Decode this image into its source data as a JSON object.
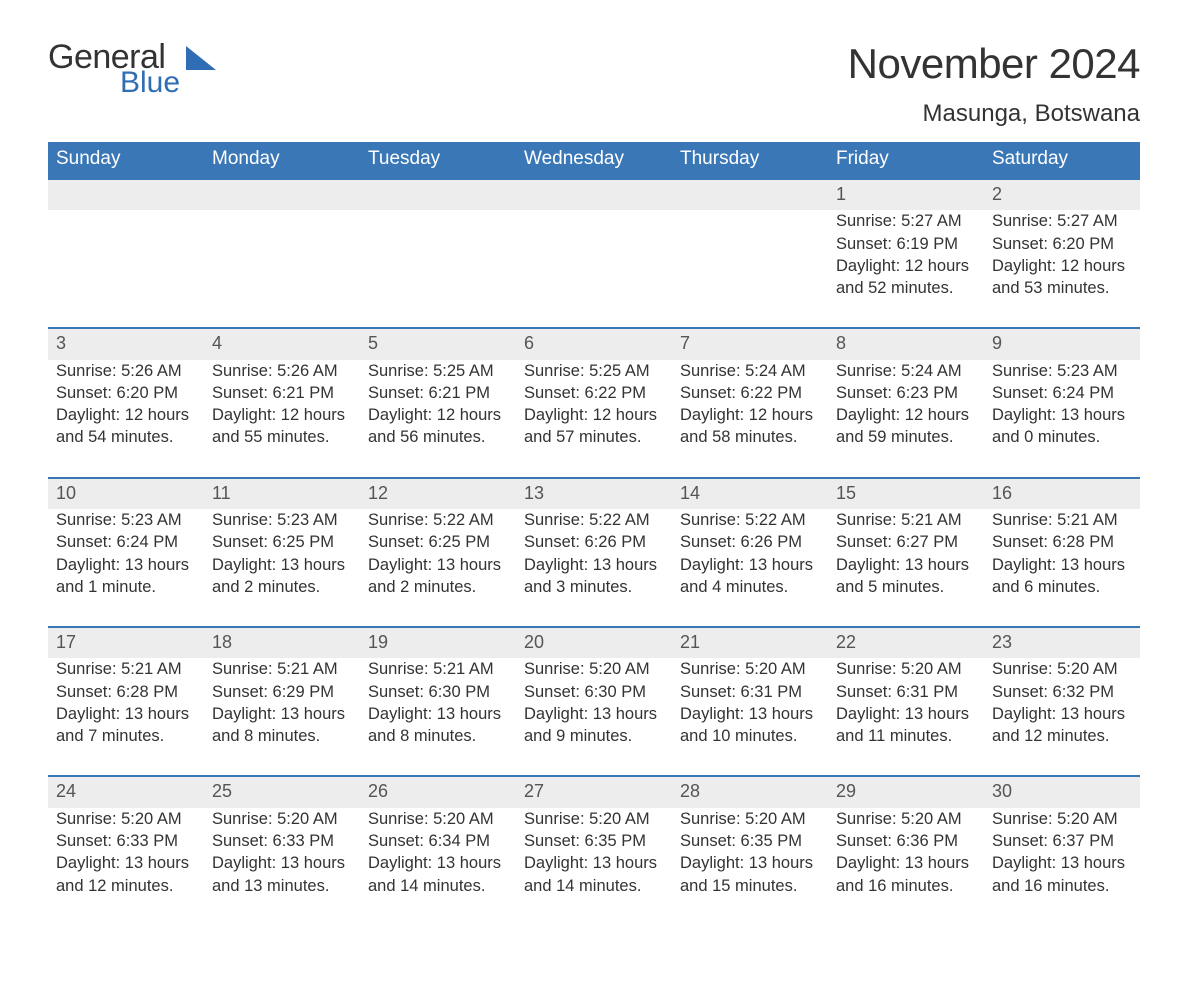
{
  "brand": {
    "part1": "General",
    "part2": "Blue",
    "text_color": "#333333",
    "accent_color": "#2f6eb5"
  },
  "title": {
    "month": "November 2024",
    "location": "Masunga, Botswana"
  },
  "colors": {
    "header_bg": "#3a77b7",
    "header_text": "#ffffff",
    "row_divider": "#3a77b7",
    "daynum_bg": "#ededed",
    "body_text": "#333333",
    "page_bg": "#ffffff"
  },
  "typography": {
    "month_title_fontsize": 42,
    "location_fontsize": 24,
    "dayheader_fontsize": 19,
    "daynum_fontsize": 18,
    "cell_fontsize": 16.5,
    "font_family": "Arial"
  },
  "layout": {
    "columns": 7,
    "weeks": 5,
    "first_day_column_index": 5
  },
  "day_headers": [
    "Sunday",
    "Monday",
    "Tuesday",
    "Wednesday",
    "Thursday",
    "Friday",
    "Saturday"
  ],
  "labels": {
    "sunrise_prefix": "Sunrise: ",
    "sunset_prefix": "Sunset: ",
    "daylight_prefix": "Daylight: "
  },
  "weeks": [
    [
      null,
      null,
      null,
      null,
      null,
      {
        "day": "1",
        "sunrise": "5:27 AM",
        "sunset": "6:19 PM",
        "daylight": "12 hours and 52 minutes."
      },
      {
        "day": "2",
        "sunrise": "5:27 AM",
        "sunset": "6:20 PM",
        "daylight": "12 hours and 53 minutes."
      }
    ],
    [
      {
        "day": "3",
        "sunrise": "5:26 AM",
        "sunset": "6:20 PM",
        "daylight": "12 hours and 54 minutes."
      },
      {
        "day": "4",
        "sunrise": "5:26 AM",
        "sunset": "6:21 PM",
        "daylight": "12 hours and 55 minutes."
      },
      {
        "day": "5",
        "sunrise": "5:25 AM",
        "sunset": "6:21 PM",
        "daylight": "12 hours and 56 minutes."
      },
      {
        "day": "6",
        "sunrise": "5:25 AM",
        "sunset": "6:22 PM",
        "daylight": "12 hours and 57 minutes."
      },
      {
        "day": "7",
        "sunrise": "5:24 AM",
        "sunset": "6:22 PM",
        "daylight": "12 hours and 58 minutes."
      },
      {
        "day": "8",
        "sunrise": "5:24 AM",
        "sunset": "6:23 PM",
        "daylight": "12 hours and 59 minutes."
      },
      {
        "day": "9",
        "sunrise": "5:23 AM",
        "sunset": "6:24 PM",
        "daylight": "13 hours and 0 minutes."
      }
    ],
    [
      {
        "day": "10",
        "sunrise": "5:23 AM",
        "sunset": "6:24 PM",
        "daylight": "13 hours and 1 minute."
      },
      {
        "day": "11",
        "sunrise": "5:23 AM",
        "sunset": "6:25 PM",
        "daylight": "13 hours and 2 minutes."
      },
      {
        "day": "12",
        "sunrise": "5:22 AM",
        "sunset": "6:25 PM",
        "daylight": "13 hours and 2 minutes."
      },
      {
        "day": "13",
        "sunrise": "5:22 AM",
        "sunset": "6:26 PM",
        "daylight": "13 hours and 3 minutes."
      },
      {
        "day": "14",
        "sunrise": "5:22 AM",
        "sunset": "6:26 PM",
        "daylight": "13 hours and 4 minutes."
      },
      {
        "day": "15",
        "sunrise": "5:21 AM",
        "sunset": "6:27 PM",
        "daylight": "13 hours and 5 minutes."
      },
      {
        "day": "16",
        "sunrise": "5:21 AM",
        "sunset": "6:28 PM",
        "daylight": "13 hours and 6 minutes."
      }
    ],
    [
      {
        "day": "17",
        "sunrise": "5:21 AM",
        "sunset": "6:28 PM",
        "daylight": "13 hours and 7 minutes."
      },
      {
        "day": "18",
        "sunrise": "5:21 AM",
        "sunset": "6:29 PM",
        "daylight": "13 hours and 8 minutes."
      },
      {
        "day": "19",
        "sunrise": "5:21 AM",
        "sunset": "6:30 PM",
        "daylight": "13 hours and 8 minutes."
      },
      {
        "day": "20",
        "sunrise": "5:20 AM",
        "sunset": "6:30 PM",
        "daylight": "13 hours and 9 minutes."
      },
      {
        "day": "21",
        "sunrise": "5:20 AM",
        "sunset": "6:31 PM",
        "daylight": "13 hours and 10 minutes."
      },
      {
        "day": "22",
        "sunrise": "5:20 AM",
        "sunset": "6:31 PM",
        "daylight": "13 hours and 11 minutes."
      },
      {
        "day": "23",
        "sunrise": "5:20 AM",
        "sunset": "6:32 PM",
        "daylight": "13 hours and 12 minutes."
      }
    ],
    [
      {
        "day": "24",
        "sunrise": "5:20 AM",
        "sunset": "6:33 PM",
        "daylight": "13 hours and 12 minutes."
      },
      {
        "day": "25",
        "sunrise": "5:20 AM",
        "sunset": "6:33 PM",
        "daylight": "13 hours and 13 minutes."
      },
      {
        "day": "26",
        "sunrise": "5:20 AM",
        "sunset": "6:34 PM",
        "daylight": "13 hours and 14 minutes."
      },
      {
        "day": "27",
        "sunrise": "5:20 AM",
        "sunset": "6:35 PM",
        "daylight": "13 hours and 14 minutes."
      },
      {
        "day": "28",
        "sunrise": "5:20 AM",
        "sunset": "6:35 PM",
        "daylight": "13 hours and 15 minutes."
      },
      {
        "day": "29",
        "sunrise": "5:20 AM",
        "sunset": "6:36 PM",
        "daylight": "13 hours and 16 minutes."
      },
      {
        "day": "30",
        "sunrise": "5:20 AM",
        "sunset": "6:37 PM",
        "daylight": "13 hours and 16 minutes."
      }
    ]
  ]
}
